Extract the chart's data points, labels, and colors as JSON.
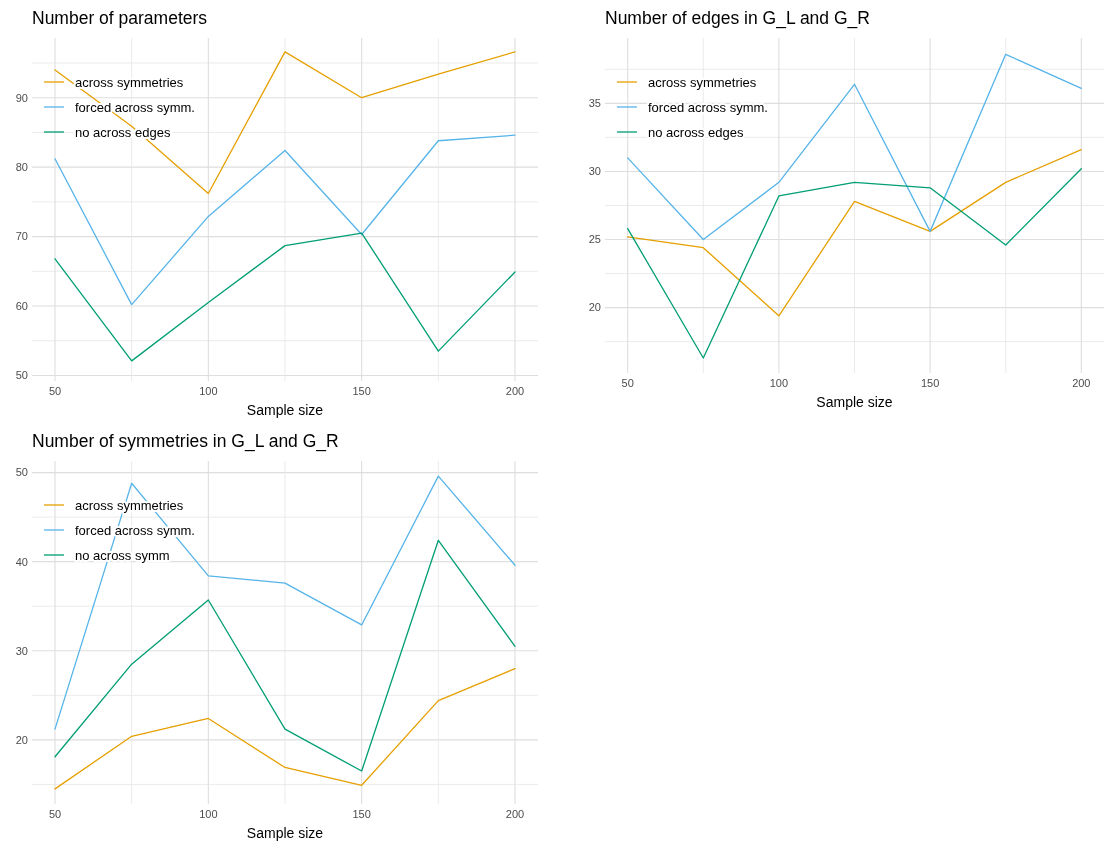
{
  "chart_data": [
    {
      "type": "line",
      "title": "Number of parameters",
      "xlabel": "Sample size",
      "x": [
        50,
        75,
        100,
        125,
        150,
        175,
        200
      ],
      "xlim": [
        42.5,
        207.5
      ],
      "ylim": [
        49.2,
        98.6
      ],
      "xticks": [
        50,
        {
          "value": 75,
          "label": null
        },
        100,
        {
          "value": 125,
          "label": null
        },
        150,
        {
          "value": 175,
          "label": null
        },
        200
      ],
      "yticks": [
        50,
        {
          "value": 55,
          "label": null
        },
        60,
        {
          "value": 65,
          "label": null
        },
        70,
        {
          "value": 75,
          "label": null
        },
        80,
        {
          "value": 85,
          "label": null
        },
        90,
        {
          "value": 95,
          "label": null
        }
      ],
      "grid": true,
      "legend": "top left",
      "marker": "none",
      "line_style": "solid",
      "series": [
        {
          "name": "across symmetries",
          "color": "#e69f00",
          "values": [
            94.0,
            85.9,
            76.2,
            96.6,
            90.0,
            93.4,
            96.6
          ]
        },
        {
          "name": "forced across symm.",
          "color": "#56b4e9",
          "values": [
            81.2,
            60.2,
            72.9,
            82.4,
            70.3,
            83.8,
            84.6
          ]
        },
        {
          "name": "no across edges",
          "color": "#009e73",
          "values": [
            66.8,
            52.1,
            60.5,
            68.7,
            70.5,
            53.5,
            64.9
          ]
        }
      ]
    },
    {
      "type": "line",
      "title": "Number of edges in G_L and G_R",
      "xlabel": "Sample size",
      "x": [
        50,
        75,
        100,
        125,
        150,
        175,
        200
      ],
      "xlim": [
        42.5,
        207.5
      ],
      "ylim": [
        15.2,
        39.8
      ],
      "xticks": [
        50,
        {
          "value": 75,
          "label": null
        },
        100,
        {
          "value": 125,
          "label": null
        },
        150,
        {
          "value": 175,
          "label": null
        },
        200
      ],
      "yticks": [
        {
          "value": 17.5,
          "label": null
        },
        20,
        {
          "value": 22.5,
          "label": null
        },
        25,
        {
          "value": 27.5,
          "label": null
        },
        30,
        {
          "value": 32.5,
          "label": null
        },
        35,
        {
          "value": 37.5,
          "label": null
        }
      ],
      "grid": true,
      "legend": "top left",
      "marker": "none",
      "line_style": "solid",
      "series": [
        {
          "name": "across symmetries",
          "color": "#e69f00",
          "values": [
            25.2,
            24.4,
            19.4,
            27.8,
            25.6,
            29.2,
            31.6
          ]
        },
        {
          "name": "forced across symm.",
          "color": "#56b4e9",
          "values": [
            31.0,
            25.0,
            29.2,
            36.4,
            25.6,
            38.6,
            36.1
          ]
        },
        {
          "name": "no across edges",
          "color": "#009e73",
          "values": [
            25.8,
            16.3,
            28.2,
            29.2,
            28.8,
            24.6,
            30.2
          ]
        }
      ]
    },
    {
      "type": "line",
      "title": "Number of symmetries in G_L and G_R",
      "xlabel": "Sample size",
      "x": [
        50,
        75,
        100,
        125,
        150,
        175,
        200
      ],
      "xlim": [
        42.5,
        207.5
      ],
      "ylim": [
        12.8,
        51.3
      ],
      "xticks": [
        50,
        {
          "value": 75,
          "label": null
        },
        100,
        {
          "value": 125,
          "label": null
        },
        150,
        {
          "value": 175,
          "label": null
        },
        200
      ],
      "yticks": [
        {
          "value": 15,
          "label": null
        },
        20,
        {
          "value": 25,
          "label": null
        },
        30,
        {
          "value": 35,
          "label": null
        },
        40,
        {
          "value": 45,
          "label": null
        },
        50
      ],
      "grid": true,
      "legend": "top left",
      "marker": "none",
      "line_style": "solid",
      "series": [
        {
          "name": "across symmetries",
          "color": "#e69f00",
          "values": [
            14.5,
            20.4,
            22.4,
            16.9,
            14.9,
            24.4,
            28.0
          ]
        },
        {
          "name": "forced across symm.",
          "color": "#56b4e9",
          "values": [
            21.2,
            48.8,
            38.4,
            37.6,
            32.9,
            49.6,
            39.6
          ]
        },
        {
          "name": "no across symm",
          "color": "#009e73",
          "values": [
            18.1,
            28.5,
            35.7,
            21.2,
            16.5,
            42.4,
            30.5
          ]
        }
      ]
    }
  ]
}
